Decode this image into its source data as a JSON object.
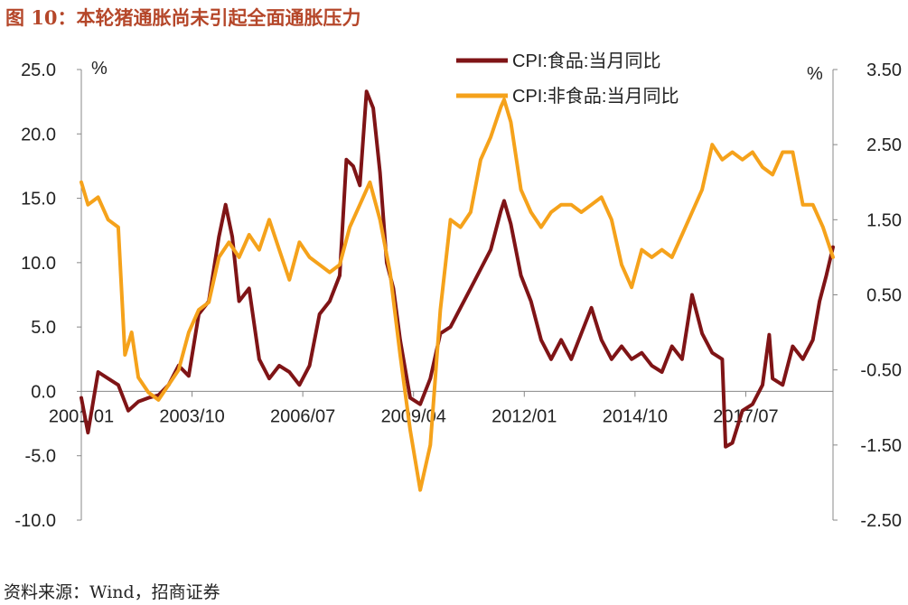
{
  "figure": {
    "title": "图 10：本轮猪通胀尚未引起全面通胀压力",
    "source": "资料来源：Wind，招商证券"
  },
  "chart_data": {
    "type": "line",
    "title": "图 10：本轮猪通胀尚未引起全面通胀压力",
    "x_start": "2001/01",
    "x_end": "2019/09",
    "x_tick_labels": [
      "2001/01",
      "2003/10",
      "2006/07",
      "2009/04",
      "2012/01",
      "2014/10",
      "2017/07"
    ],
    "left_axis": {
      "unit": "%",
      "ylim": [
        -10,
        25
      ],
      "ticks": [
        "25.0",
        "20.0",
        "15.0",
        "10.0",
        "5.0",
        "0.0",
        "-5.0",
        "-10.0"
      ]
    },
    "right_axis": {
      "unit": "%",
      "ylim": [
        -2.5,
        3.5
      ],
      "ticks": [
        "3.50",
        "2.50",
        "1.50",
        "0.50",
        "-0.50",
        "-1.50",
        "-2.50"
      ]
    },
    "legend_position": "top-center",
    "series": [
      {
        "name": "CPI:食品:当月同比",
        "axis": "left",
        "color": "#7f1416",
        "points": [
          [
            "2001/01",
            -0.5
          ],
          [
            "2001/03",
            -3.2
          ],
          [
            "2001/06",
            1.5
          ],
          [
            "2001/09",
            1.0
          ],
          [
            "2001/12",
            0.5
          ],
          [
            "2002/03",
            -1.5
          ],
          [
            "2002/06",
            -0.8
          ],
          [
            "2002/09",
            -0.5
          ],
          [
            "2002/12",
            -0.3
          ],
          [
            "2003/03",
            0.5
          ],
          [
            "2003/06",
            2.0
          ],
          [
            "2003/09",
            1.2
          ],
          [
            "2003/12",
            6.0
          ],
          [
            "2004/03",
            7.0
          ],
          [
            "2004/06",
            12.0
          ],
          [
            "2004/08",
            14.5
          ],
          [
            "2004/10",
            12.0
          ],
          [
            "2004/12",
            7.0
          ],
          [
            "2005/03",
            8.0
          ],
          [
            "2005/06",
            2.5
          ],
          [
            "2005/09",
            1.0
          ],
          [
            "2005/12",
            2.0
          ],
          [
            "2006/03",
            1.5
          ],
          [
            "2006/06",
            0.5
          ],
          [
            "2006/09",
            2.0
          ],
          [
            "2006/12",
            6.0
          ],
          [
            "2007/03",
            7.0
          ],
          [
            "2007/06",
            9.0
          ],
          [
            "2007/08",
            18.0
          ],
          [
            "2007/10",
            17.5
          ],
          [
            "2007/12",
            16.0
          ],
          [
            "2008/02",
            23.3
          ],
          [
            "2008/04",
            22.0
          ],
          [
            "2008/06",
            17.0
          ],
          [
            "2008/08",
            10.0
          ],
          [
            "2008/10",
            8.0
          ],
          [
            "2008/12",
            4.0
          ],
          [
            "2009/03",
            -0.5
          ],
          [
            "2009/06",
            -1.0
          ],
          [
            "2009/09",
            1.0
          ],
          [
            "2009/12",
            4.5
          ],
          [
            "2010/03",
            5.0
          ],
          [
            "2010/06",
            6.5
          ],
          [
            "2010/09",
            8.0
          ],
          [
            "2010/12",
            9.5
          ],
          [
            "2011/03",
            11.0
          ],
          [
            "2011/06",
            14.0
          ],
          [
            "2011/07",
            14.8
          ],
          [
            "2011/09",
            13.0
          ],
          [
            "2011/12",
            9.0
          ],
          [
            "2012/03",
            7.0
          ],
          [
            "2012/06",
            4.0
          ],
          [
            "2012/09",
            2.5
          ],
          [
            "2012/12",
            4.0
          ],
          [
            "2013/03",
            2.5
          ],
          [
            "2013/06",
            4.5
          ],
          [
            "2013/09",
            6.5
          ],
          [
            "2013/12",
            4.0
          ],
          [
            "2014/03",
            2.5
          ],
          [
            "2014/06",
            3.5
          ],
          [
            "2014/09",
            2.5
          ],
          [
            "2014/12",
            3.0
          ],
          [
            "2015/03",
            2.0
          ],
          [
            "2015/06",
            1.5
          ],
          [
            "2015/09",
            3.5
          ],
          [
            "2015/12",
            2.5
          ],
          [
            "2016/03",
            7.5
          ],
          [
            "2016/06",
            4.5
          ],
          [
            "2016/09",
            3.0
          ],
          [
            "2016/12",
            2.5
          ],
          [
            "2017/01",
            -4.3
          ],
          [
            "2017/03",
            -4.0
          ],
          [
            "2017/06",
            -1.5
          ],
          [
            "2017/09",
            -1.0
          ],
          [
            "2017/12",
            0.5
          ],
          [
            "2018/02",
            4.4
          ],
          [
            "2018/03",
            1.0
          ],
          [
            "2018/06",
            0.5
          ],
          [
            "2018/09",
            3.5
          ],
          [
            "2018/12",
            2.5
          ],
          [
            "2019/03",
            4.0
          ],
          [
            "2019/05",
            7.0
          ],
          [
            "2019/07",
            9.0
          ],
          [
            "2019/09",
            11.2
          ]
        ]
      },
      {
        "name": "CPI:非食品:当月同比",
        "axis": "right",
        "color": "#f5a21b",
        "points": [
          [
            "2001/01",
            2.0
          ],
          [
            "2001/03",
            1.7
          ],
          [
            "2001/06",
            1.8
          ],
          [
            "2001/09",
            1.5
          ],
          [
            "2001/12",
            1.4
          ],
          [
            "2002/02",
            -0.3
          ],
          [
            "2002/04",
            0.0
          ],
          [
            "2002/06",
            -0.6
          ],
          [
            "2002/09",
            -0.8
          ],
          [
            "2002/12",
            -0.9
          ],
          [
            "2003/03",
            -0.7
          ],
          [
            "2003/06",
            -0.5
          ],
          [
            "2003/09",
            0.0
          ],
          [
            "2003/12",
            0.3
          ],
          [
            "2004/03",
            0.4
          ],
          [
            "2004/06",
            1.0
          ],
          [
            "2004/09",
            1.2
          ],
          [
            "2004/12",
            1.0
          ],
          [
            "2005/03",
            1.3
          ],
          [
            "2005/06",
            1.1
          ],
          [
            "2005/09",
            1.5
          ],
          [
            "2005/12",
            1.1
          ],
          [
            "2006/03",
            0.7
          ],
          [
            "2006/06",
            1.2
          ],
          [
            "2006/09",
            1.0
          ],
          [
            "2006/12",
            0.9
          ],
          [
            "2007/03",
            0.8
          ],
          [
            "2007/06",
            0.9
          ],
          [
            "2007/09",
            1.4
          ],
          [
            "2007/12",
            1.7
          ],
          [
            "2008/03",
            2.0
          ],
          [
            "2008/06",
            1.5
          ],
          [
            "2008/09",
            0.8
          ],
          [
            "2008/12",
            -0.3
          ],
          [
            "2009/03",
            -1.3
          ],
          [
            "2009/06",
            -2.1
          ],
          [
            "2009/09",
            -1.5
          ],
          [
            "2009/12",
            0.3
          ],
          [
            "2010/03",
            1.5
          ],
          [
            "2010/06",
            1.4
          ],
          [
            "2010/09",
            1.6
          ],
          [
            "2010/12",
            2.3
          ],
          [
            "2011/03",
            2.6
          ],
          [
            "2011/06",
            3.0
          ],
          [
            "2011/07",
            3.1
          ],
          [
            "2011/09",
            2.8
          ],
          [
            "2011/12",
            1.9
          ],
          [
            "2012/03",
            1.6
          ],
          [
            "2012/06",
            1.4
          ],
          [
            "2012/09",
            1.6
          ],
          [
            "2012/12",
            1.7
          ],
          [
            "2013/03",
            1.7
          ],
          [
            "2013/06",
            1.6
          ],
          [
            "2013/09",
            1.7
          ],
          [
            "2013/12",
            1.8
          ],
          [
            "2014/03",
            1.5
          ],
          [
            "2014/06",
            0.9
          ],
          [
            "2014/09",
            0.6
          ],
          [
            "2014/12",
            1.1
          ],
          [
            "2015/03",
            1.0
          ],
          [
            "2015/06",
            1.1
          ],
          [
            "2015/09",
            1.0
          ],
          [
            "2015/12",
            1.3
          ],
          [
            "2016/03",
            1.6
          ],
          [
            "2016/06",
            1.9
          ],
          [
            "2016/09",
            2.5
          ],
          [
            "2016/12",
            2.3
          ],
          [
            "2017/03",
            2.4
          ],
          [
            "2017/06",
            2.3
          ],
          [
            "2017/09",
            2.4
          ],
          [
            "2017/12",
            2.2
          ],
          [
            "2018/03",
            2.1
          ],
          [
            "2018/06",
            2.4
          ],
          [
            "2018/09",
            2.4
          ],
          [
            "2018/12",
            1.7
          ],
          [
            "2019/03",
            1.7
          ],
          [
            "2019/06",
            1.4
          ],
          [
            "2019/09",
            1.0
          ]
        ]
      }
    ]
  }
}
